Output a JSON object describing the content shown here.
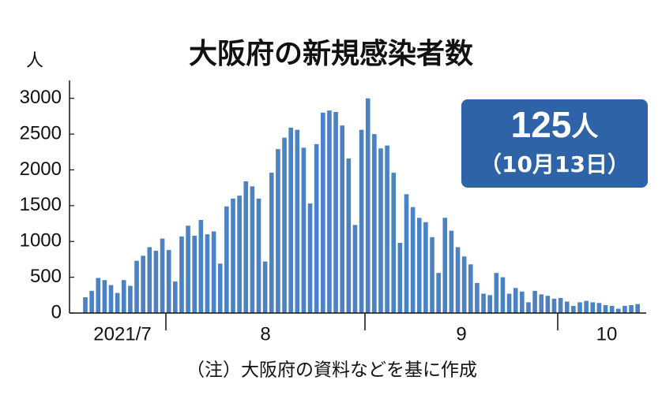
{
  "chart_data": {
    "type": "bar",
    "title": "大阪府の新規感染者数",
    "y_unit": "人",
    "color": "#4a82c3",
    "ylim": [
      0,
      3250
    ],
    "yticks": [
      0,
      500,
      1000,
      1500,
      2000,
      2500,
      3000
    ],
    "month_labels": [
      "2021/7",
      "8",
      "9",
      "10"
    ],
    "categories": [
      null,
      null,
      null,
      null,
      null,
      null,
      null,
      null,
      null,
      null,
      null,
      null,
      null,
      null,
      null,
      null,
      null,
      null,
      null,
      null,
      null,
      null,
      null,
      null,
      null,
      null,
      null,
      null,
      null,
      null,
      null,
      null,
      null,
      null,
      null,
      null,
      null,
      null,
      null,
      null,
      null,
      null,
      null,
      null,
      null,
      null,
      null,
      null,
      null,
      null,
      null,
      null,
      null,
      null,
      null,
      null,
      null,
      null,
      null,
      null,
      null,
      null,
      null,
      null,
      null,
      null,
      null,
      null,
      null,
      null,
      null,
      null,
      null,
      null,
      null,
      null,
      null,
      null,
      null,
      null,
      null,
      null,
      null,
      null,
      null,
      null,
      null
    ],
    "values": [
      220,
      310,
      490,
      460,
      390,
      280,
      460,
      380,
      730,
      800,
      920,
      870,
      1040,
      880,
      440,
      1070,
      1220,
      1080,
      1300,
      1100,
      1140,
      690,
      1490,
      1600,
      1640,
      1840,
      1770,
      1600,
      720,
      1960,
      2290,
      2450,
      2590,
      2560,
      2310,
      1530,
      2360,
      2800,
      2830,
      2810,
      2620,
      2160,
      1230,
      2560,
      3000,
      2500,
      2300,
      2340,
      1960,
      980,
      1660,
      1480,
      1330,
      1270,
      1060,
      560,
      1330,
      1150,
      920,
      790,
      680,
      420,
      270,
      250,
      560,
      500,
      270,
      350,
      300,
      150,
      310,
      260,
      240,
      200,
      210,
      160,
      100,
      150,
      170,
      150,
      140,
      110,
      100,
      60,
      100,
      110,
      125
    ],
    "badge": {
      "value": 125,
      "unit": "人",
      "date": "（10月13日）"
    },
    "note": "（注）大阪府の資料などを基に作成"
  }
}
